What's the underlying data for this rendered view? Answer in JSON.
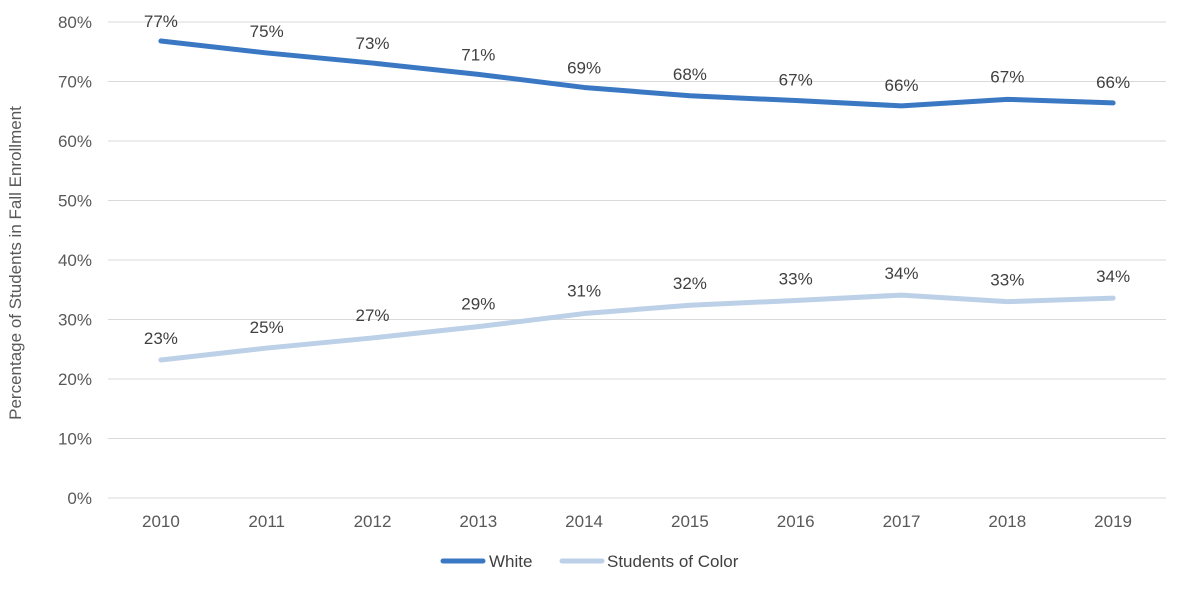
{
  "chart_data": {
    "type": "line",
    "title": "",
    "xlabel": "",
    "ylabel": "Percentage of Students in Fall Enrollment",
    "categories": [
      "2010",
      "2011",
      "2012",
      "2013",
      "2014",
      "2015",
      "2016",
      "2017",
      "2018",
      "2019"
    ],
    "ylim": [
      0,
      80
    ],
    "yticks": [
      0,
      10,
      20,
      30,
      40,
      50,
      60,
      70,
      80
    ],
    "ytick_labels": [
      "0%",
      "10%",
      "20%",
      "30%",
      "40%",
      "50%",
      "60%",
      "70%",
      "80%"
    ],
    "grid": "horizontal",
    "legend": "bottom",
    "series": [
      {
        "name": "White",
        "color": "#3b78c3",
        "values": [
          76.8,
          74.8,
          73.1,
          71.2,
          69.0,
          67.6,
          66.8,
          65.9,
          67.0,
          66.4
        ],
        "labels": [
          "77%",
          "75%",
          "73%",
          "71%",
          "69%",
          "68%",
          "67%",
          "66%",
          "67%",
          "66%"
        ]
      },
      {
        "name": "Students of Color",
        "color": "#bcd0e7",
        "values": [
          23.2,
          25.2,
          26.9,
          28.8,
          31.0,
          32.4,
          33.2,
          34.1,
          33.0,
          33.6
        ],
        "labels": [
          "23%",
          "25%",
          "27%",
          "29%",
          "31%",
          "32%",
          "33%",
          "34%",
          "33%",
          "34%"
        ]
      }
    ]
  }
}
